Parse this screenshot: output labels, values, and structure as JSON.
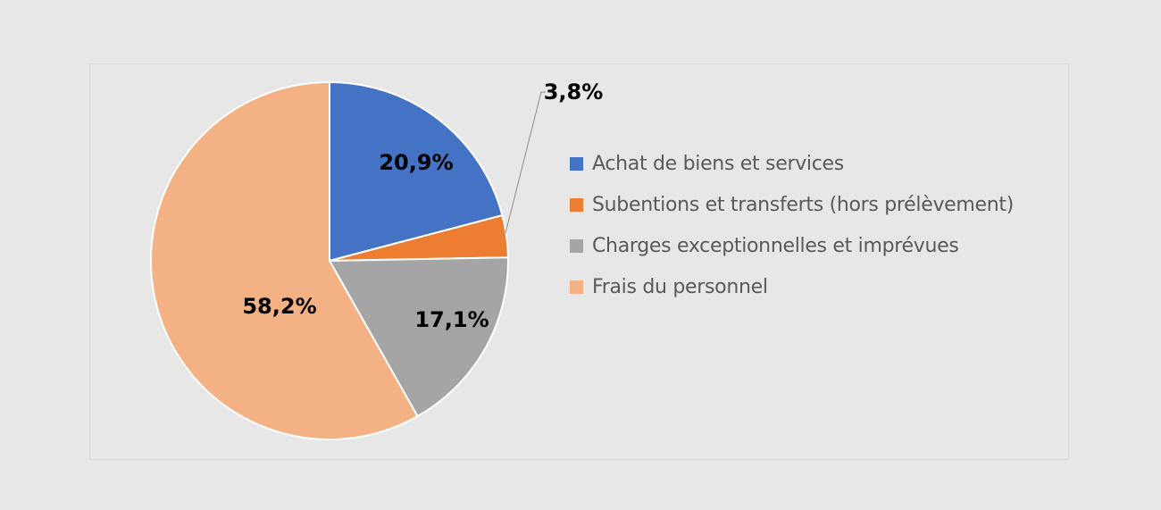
{
  "chart_data": {
    "type": "pie",
    "title": "",
    "start_angle_deg": 0,
    "direction": "clockwise",
    "slices": [
      {
        "name": "Achat de biens et services",
        "value": 20.9,
        "label": "20,9%",
        "color": "#4472c4"
      },
      {
        "name": "Subentions et transferts (hors prélèvement)",
        "value": 3.8,
        "label": "3,8%",
        "color": "#ed7d31"
      },
      {
        "name": "Charges exceptionnelles et imprévues",
        "value": 17.1,
        "label": "17,1%",
        "color": "#a5a5a5"
      },
      {
        "name": "Frais du personnel",
        "value": 58.2,
        "label": "58,2%",
        "color": "#f4b183"
      }
    ],
    "legend_position": "right"
  }
}
